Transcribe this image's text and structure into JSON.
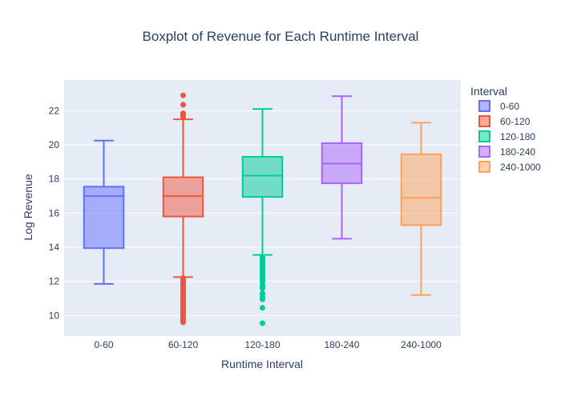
{
  "chart_data": {
    "type": "box",
    "title": "Boxplot of Revenue for Each Runtime Interval",
    "xlabel": "Runtime Interval",
    "ylabel": "Log Revenue",
    "ylim": [
      8.8,
      23.8
    ],
    "y_ticks": [
      10,
      12,
      14,
      16,
      18,
      20,
      22
    ],
    "grid": true,
    "legend": {
      "title": "Interval",
      "position": "right"
    },
    "categories": [
      "0-60",
      "60-120",
      "120-180",
      "180-240",
      "240-1000"
    ],
    "series": [
      {
        "name": "0-60",
        "color": "#636efa",
        "lower_fence": 11.85,
        "q1": 13.95,
        "median": 17.0,
        "q3": 17.55,
        "upper_fence": 20.25,
        "outliers": []
      },
      {
        "name": "60-120",
        "color": "#ef553b",
        "lower_fence": 12.25,
        "q1": 15.8,
        "median": 17.0,
        "q3": 18.1,
        "upper_fence": 21.5,
        "outliers": [
          22.9,
          22.35,
          21.85,
          21.75,
          21.65,
          12.2,
          12.1,
          12.0,
          11.9,
          11.8,
          11.7,
          11.6,
          11.5,
          11.4,
          11.3,
          11.2,
          11.1,
          11.0,
          10.9,
          10.8,
          10.7,
          10.6,
          10.5,
          10.4,
          10.3,
          10.2,
          10.1,
          10.0,
          9.9,
          9.8,
          9.7,
          9.65,
          9.6
        ]
      },
      {
        "name": "120-180",
        "color": "#00cc96",
        "lower_fence": 13.55,
        "q1": 16.95,
        "median": 18.2,
        "q3": 19.3,
        "upper_fence": 22.1,
        "outliers": [
          13.4,
          13.3,
          13.2,
          13.1,
          13.0,
          12.9,
          12.8,
          12.7,
          12.6,
          12.5,
          12.4,
          12.3,
          12.2,
          12.1,
          12.0,
          11.8,
          11.7,
          11.6,
          11.3,
          11.1,
          10.95,
          10.45,
          9.55
        ]
      },
      {
        "name": "180-240",
        "color": "#ab63fa",
        "lower_fence": 14.5,
        "q1": 17.75,
        "median": 18.9,
        "q3": 20.1,
        "upper_fence": 22.85,
        "outliers": []
      },
      {
        "name": "240-1000",
        "color": "#ffa15a",
        "lower_fence": 11.2,
        "q1": 15.3,
        "median": 16.9,
        "q3": 19.45,
        "upper_fence": 21.3,
        "outliers": []
      }
    ]
  }
}
